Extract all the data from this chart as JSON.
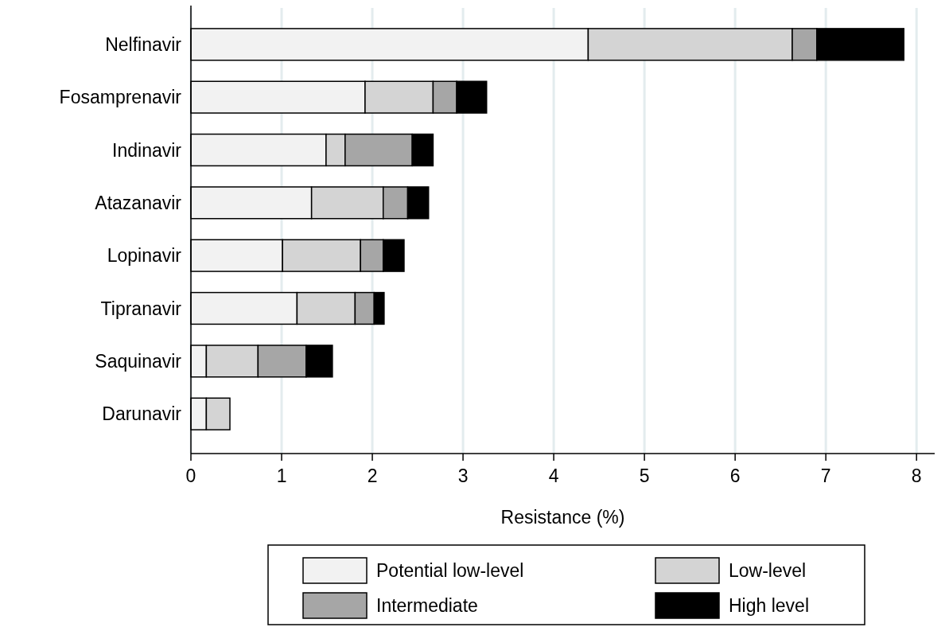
{
  "chart_data": {
    "type": "bar",
    "orientation": "horizontal",
    "stacked": true,
    "xlabel": "Resistance (%)",
    "categories": [
      "Nelfinavir",
      "Fosamprenavir",
      "Indinavir",
      "Atazanavir",
      "Lopinavir",
      "Tipranavir",
      "Saquinavir",
      "Darunavir"
    ],
    "series": [
      {
        "name": "Potential low-level",
        "color": "#f2f2f2",
        "values": [
          4.38,
          1.92,
          1.49,
          1.33,
          1.01,
          1.17,
          0.17,
          0.17
        ]
      },
      {
        "name": "Low-level",
        "color": "#d4d4d4",
        "values": [
          2.25,
          0.75,
          0.21,
          0.79,
          0.86,
          0.64,
          0.57,
          0.26
        ]
      },
      {
        "name": "Intermediate",
        "color": "#a6a6a6",
        "values": [
          0.27,
          0.26,
          0.74,
          0.27,
          0.25,
          0.21,
          0.53,
          null
        ]
      },
      {
        "name": "High level",
        "color": "#000000",
        "values": [
          0.96,
          0.33,
          0.23,
          0.23,
          0.23,
          0.11,
          0.29,
          null
        ]
      }
    ],
    "xlim": [
      0,
      8.2
    ],
    "xticks": [
      0,
      1,
      2,
      3,
      4,
      5,
      6,
      7,
      8
    ],
    "grid": "x",
    "legend": "bottom"
  }
}
